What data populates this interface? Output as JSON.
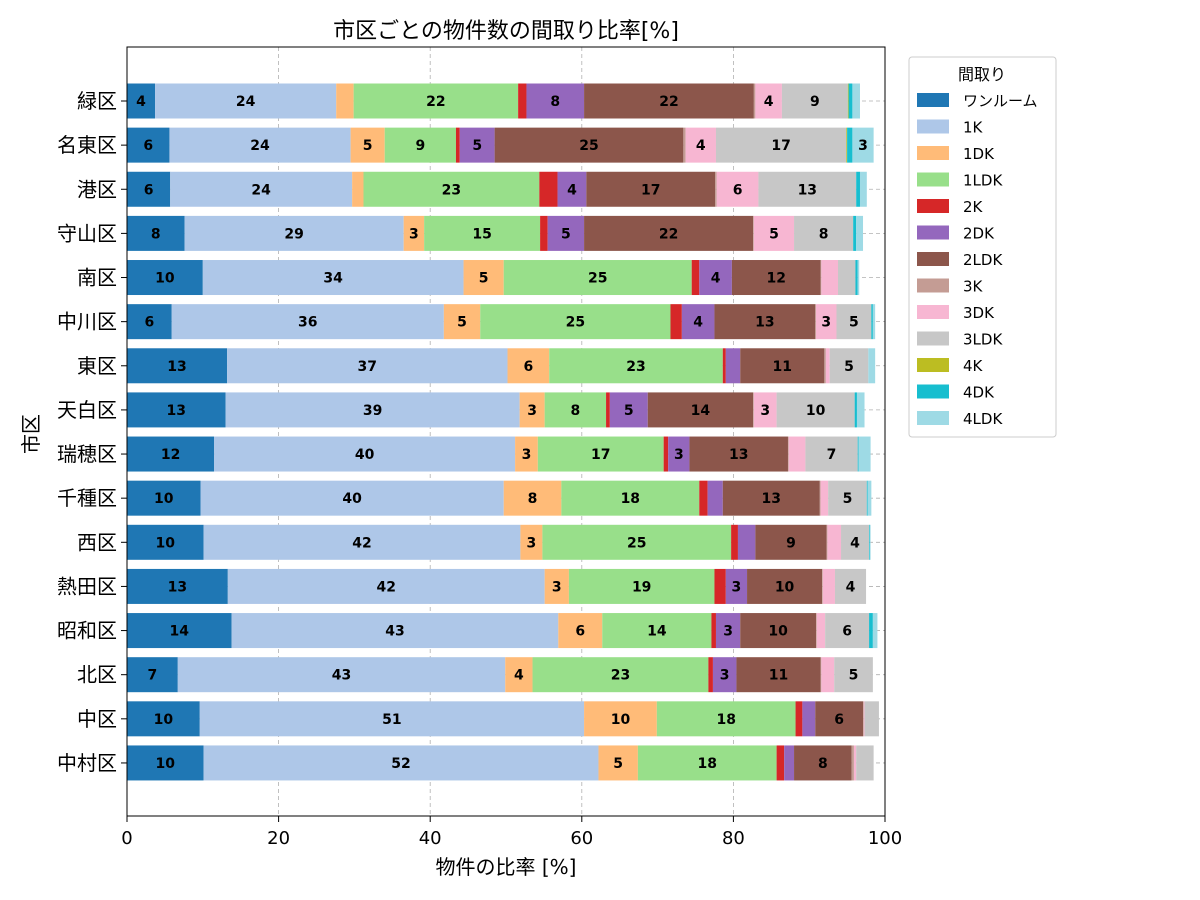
{
  "chart_data": {
    "type": "bar",
    "orientation": "horizontal",
    "stacked": true,
    "title": "市区ごとの物件数の間取り比率[%]",
    "xlabel": "物件の比率 [%]",
    "ylabel": "市区",
    "xlim": [
      0,
      100
    ],
    "xticks": [
      0,
      20,
      40,
      60,
      80,
      100
    ],
    "grid": true,
    "legend": {
      "title": "間取り",
      "placement": "outside-right-top"
    },
    "categories": [
      "緑区",
      "名東区",
      "港区",
      "守山区",
      "南区",
      "中川区",
      "東区",
      "天白区",
      "瑞穂区",
      "千種区",
      "西区",
      "熱田区",
      "昭和区",
      "北区",
      "中区",
      "中村区"
    ],
    "series": [
      {
        "name": "ワンルーム",
        "color": "#1f77b4",
        "values": [
          3.7,
          5.6,
          5.7,
          7.6,
          10.0,
          5.9,
          13.2,
          13.0,
          11.5,
          9.7,
          10.1,
          13.3,
          13.8,
          6.7,
          9.6,
          10.1
        ]
      },
      {
        "name": "1K",
        "color": "#aec7e8",
        "values": [
          23.9,
          23.9,
          24.0,
          28.9,
          34.4,
          35.9,
          37.0,
          38.8,
          39.7,
          40.0,
          41.8,
          41.8,
          43.1,
          43.2,
          50.7,
          52.1
        ]
      },
      {
        "name": "1DK",
        "color": "#ffbb78",
        "values": [
          2.3,
          4.5,
          1.5,
          2.7,
          5.3,
          4.8,
          5.5,
          3.3,
          3.0,
          7.6,
          2.9,
          3.2,
          5.8,
          3.6,
          9.6,
          5.2
        ]
      },
      {
        "name": "1LDK",
        "color": "#98df8a",
        "values": [
          21.7,
          9.4,
          23.2,
          15.3,
          24.8,
          25.1,
          22.9,
          8.1,
          16.6,
          18.2,
          24.9,
          19.2,
          14.4,
          23.2,
          18.3,
          18.3
        ]
      },
      {
        "name": "2K",
        "color": "#d62728",
        "values": [
          1.1,
          0.5,
          2.4,
          1.0,
          1.0,
          1.5,
          0.4,
          0.5,
          0.6,
          1.1,
          0.9,
          1.5,
          0.6,
          0.6,
          0.9,
          1.0
        ]
      },
      {
        "name": "2DK",
        "color": "#9467bd",
        "values": [
          7.6,
          4.6,
          3.8,
          4.8,
          4.3,
          4.3,
          1.9,
          5.0,
          2.8,
          2.0,
          2.3,
          2.8,
          3.2,
          3.1,
          1.7,
          1.3
        ]
      },
      {
        "name": "2LDK",
        "color": "#8c564b",
        "values": [
          22.4,
          24.9,
          17.0,
          22.3,
          11.7,
          13.3,
          11.1,
          13.9,
          13.0,
          12.8,
          9.4,
          9.9,
          10.0,
          11.1,
          6.3,
          7.6
        ]
      },
      {
        "name": "3K",
        "color": "#c49c94",
        "values": [
          0.2,
          0.3,
          0.2,
          0.1,
          0.1,
          0.1,
          0.2,
          0.1,
          0.1,
          0.1,
          0.1,
          0.1,
          0.1,
          0.1,
          0.1,
          0.3
        ]
      },
      {
        "name": "3DK",
        "color": "#f7b6d2",
        "values": [
          3.5,
          4.0,
          5.5,
          5.3,
          2.2,
          2.7,
          0.5,
          3.0,
          2.2,
          1.0,
          1.8,
          1.6,
          1.1,
          1.7,
          0.1,
          0.3
        ]
      },
      {
        "name": "3LDK",
        "color": "#c7c7c7",
        "values": [
          8.7,
          17.2,
          12.9,
          7.8,
          2.3,
          4.6,
          5.1,
          10.3,
          6.9,
          5.1,
          3.7,
          4.1,
          5.8,
          5.1,
          1.9,
          2.3
        ]
      },
      {
        "name": "4K",
        "color": "#bcbd22",
        "values": [
          0.1,
          0.1,
          0.0,
          0.0,
          0.0,
          0.0,
          0.0,
          0.0,
          0.0,
          0.0,
          0.0,
          0.0,
          0.0,
          0.0,
          0.0,
          0.0
        ]
      },
      {
        "name": "4DK",
        "color": "#17becf",
        "values": [
          0.5,
          0.7,
          0.5,
          0.4,
          0.3,
          0.2,
          0.0,
          0.3,
          0.1,
          0.1,
          0.1,
          0.0,
          0.5,
          0.0,
          0.0,
          0.0
        ]
      },
      {
        "name": "4LDK",
        "color": "#9edae5",
        "values": [
          1.0,
          2.8,
          0.9,
          0.9,
          0.2,
          0.3,
          0.9,
          1.0,
          1.6,
          0.5,
          0.1,
          0.0,
          0.6,
          0.0,
          0.0,
          0.0
        ]
      }
    ],
    "segment_labels_min_pct": 2.5
  }
}
